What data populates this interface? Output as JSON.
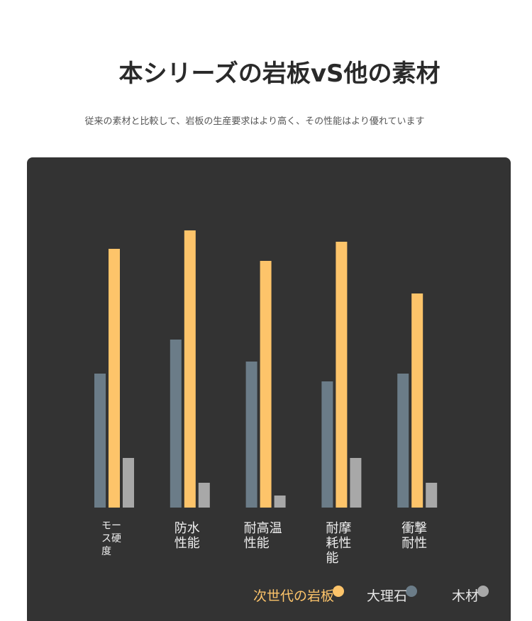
{
  "chart_data": {
    "type": "bar",
    "title": "本シリーズの岩板vS他の素材",
    "subtitle": "従来の素材と比較して、岩板の生産要求はより高く、その性能はより優れています",
    "categories": [
      "モー\nス硬\n度",
      "防水\n性能",
      "耐高温\n性能",
      "耐摩\n耗性\n能",
      "衝撃\n耐性"
    ],
    "series": [
      {
        "name": "大理石",
        "color": "#6b7c88",
        "values": [
          189,
          237,
          206,
          178,
          189
        ]
      },
      {
        "name": "次世代の岩板",
        "color": "#fdc46a",
        "values": [
          365,
          391,
          348,
          375,
          302
        ]
      },
      {
        "name": "木材",
        "color": "#a8a8a8",
        "values": [
          70,
          35,
          17,
          70,
          35
        ]
      }
    ],
    "ylim": [
      0,
      400
    ]
  }
}
